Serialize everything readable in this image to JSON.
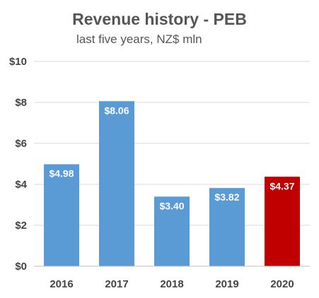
{
  "chart_data": {
    "type": "bar",
    "title": "Revenue history - PEB",
    "subtitle": "last five years, NZ$ mln",
    "categories": [
      "2016",
      "2017",
      "2018",
      "2019",
      "2020"
    ],
    "values": [
      4.98,
      8.06,
      3.4,
      3.82,
      4.37
    ],
    "data_labels": [
      "$4.98",
      "$8.06",
      "$3.40",
      "$3.82",
      "$4.37"
    ],
    "ylim": [
      0,
      10
    ],
    "yticks": [
      0,
      2,
      4,
      6,
      8,
      10
    ],
    "ytick_labels": [
      "$0",
      "$2",
      "$4",
      "$6",
      "$8",
      "$10"
    ],
    "xlabel": "",
    "ylabel": "",
    "grid": true,
    "legend": "none",
    "colors": {
      "default_bar": "#5b9bd5",
      "highlight_bar": "#c00000",
      "highlight_index": 4,
      "gridline": "#d9d9d9",
      "axis_line": "#bfbfbf",
      "title": "#555555",
      "tick_label": "#444444",
      "data_label": "#ffffff"
    }
  }
}
